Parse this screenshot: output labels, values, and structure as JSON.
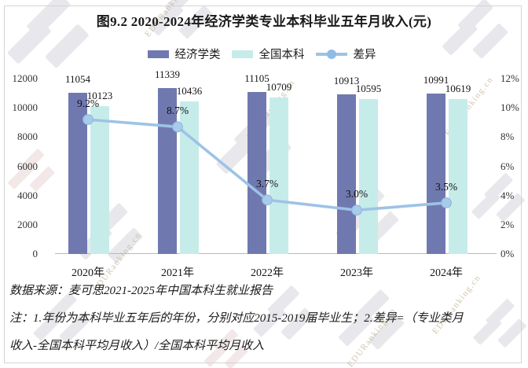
{
  "title": "图9.2 2020-2024年经济学类专业本科毕业五年月收入(元)",
  "legend": [
    {
      "label": "经济学类",
      "type": "bar",
      "color": "#7079AF"
    },
    {
      "label": "全国本科",
      "type": "bar",
      "color": "#C6ECEA"
    },
    {
      "label": "差异",
      "type": "line",
      "color": "#9DC3E6"
    }
  ],
  "chart_data": {
    "type": "bar+line",
    "title": "图9.2 2020-2024年经济学类专业本科毕业五年月收入(元)",
    "categories": [
      "2020年",
      "2021年",
      "2022年",
      "2023年",
      "2024年"
    ],
    "series": [
      {
        "name": "经济学类",
        "type": "bar",
        "color": "#7079AF",
        "values": [
          11054,
          11339,
          11105,
          10913,
          10991
        ]
      },
      {
        "name": "全国本科",
        "type": "bar",
        "color": "#C6ECEA",
        "values": [
          10123,
          10436,
          10709,
          10595,
          10619
        ]
      },
      {
        "name": "差异",
        "type": "line",
        "color": "#9DC3E6",
        "marker_fill": "#A9CBEA",
        "marker_stroke": "#8FB9E2",
        "values_pct": [
          9.2,
          8.7,
          3.7,
          3.0,
          3.5
        ],
        "labels": [
          "9.2%",
          "8.7%",
          "3.7%",
          "3.0%",
          "3.5%"
        ]
      }
    ],
    "left_axis": {
      "ticks": [
        "12000",
        "10000",
        "8000",
        "6000",
        "4000",
        "2000",
        "0"
      ],
      "max": 12000,
      "min": 0
    },
    "right_axis": {
      "ticks": [
        "12%",
        "10%",
        "8%",
        "6%",
        "4%",
        "2%",
        "0%"
      ],
      "max": 12,
      "min": 0
    },
    "grid": false,
    "legend_position": "top"
  },
  "source": "数据来源：麦可思2021-2025年中国本科生就业报告",
  "note_line1": "注：1.年份为本科毕业五年后的年份，分别对应2015-2019届毕业生；2.差异=（专业类月",
  "note_line2": "收入-全国本科平均月收入）/全国本科平均月收入",
  "watermark": {
    "text": "EDURanking.cn"
  }
}
